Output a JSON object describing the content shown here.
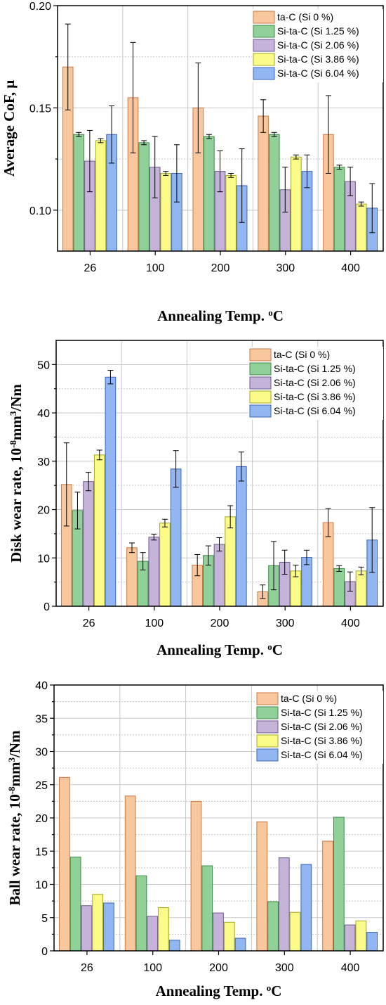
{
  "colors": {
    "series": [
      "#F9C79D",
      "#92D09A",
      "#C5B3DA",
      "#FBFB8A",
      "#92B6F2"
    ],
    "series_edge": [
      "#C97A45",
      "#3C8A47",
      "#6F5A8C",
      "#A6A61F",
      "#3B66B8"
    ]
  },
  "chart_data": [
    {
      "type": "bar",
      "xlabel": "Annealing Temp. ",
      "xlabel_sup": "o",
      "xlabel_tail": "C",
      "ylabel": "Average CoF, μ",
      "categories": [
        "26",
        "100",
        "200",
        "300",
        "400"
      ],
      "ylim": [
        0.08,
        0.2
      ],
      "yticks": [
        0.1,
        0.15,
        0.2
      ],
      "ytick_labels": [
        "0.10",
        "0.15",
        "0.20"
      ],
      "grid": true,
      "legend_position": "top-right",
      "series": [
        {
          "name": "ta-C (Si 0 %)",
          "values": [
            0.17,
            0.155,
            0.15,
            0.146,
            0.137
          ],
          "errors": [
            0.021,
            0.027,
            0.022,
            0.008,
            0.019
          ]
        },
        {
          "name": "Si-ta-C (Si 1.25 %)",
          "values": [
            0.137,
            0.133,
            0.136,
            0.137,
            0.121
          ],
          "errors": [
            0.001,
            0.001,
            0.001,
            0.001,
            0.001
          ]
        },
        {
          "name": "Si-ta-C (Si 2.06 %)",
          "values": [
            0.124,
            0.121,
            0.119,
            0.11,
            0.114
          ],
          "errors": [
            0.015,
            0.015,
            0.01,
            0.011,
            0.007
          ]
        },
        {
          "name": "Si-ta-C (Si 3.86 %)",
          "values": [
            0.134,
            0.118,
            0.117,
            0.126,
            0.103
          ],
          "errors": [
            0.001,
            0.001,
            0.001,
            0.001,
            0.001
          ]
        },
        {
          "name": "Si-ta-C (Si 6.04 %)",
          "values": [
            0.137,
            0.118,
            0.112,
            0.119,
            0.101
          ],
          "errors": [
            0.014,
            0.014,
            0.018,
            0.008,
            0.012
          ]
        }
      ]
    },
    {
      "type": "bar",
      "xlabel": "Annealing Temp. ",
      "xlabel_sup": "o",
      "xlabel_tail": "C",
      "ylabel": "Disk wear rate, 10",
      "ylabel_sup1": "-8",
      "ylabel_mid": "mm",
      "ylabel_sup2": "3",
      "ylabel_tail": "/Nm",
      "categories": [
        "26",
        "100",
        "200",
        "300",
        "400"
      ],
      "ylim": [
        0,
        55
      ],
      "yticks": [
        0,
        10,
        20,
        30,
        40,
        50
      ],
      "ytick_labels": [
        "0",
        "10",
        "20",
        "30",
        "40",
        "50"
      ],
      "grid": true,
      "legend_position": "top-right",
      "series": [
        {
          "name": "ta-C (Si 0 %)",
          "values": [
            25.2,
            12.1,
            8.5,
            3.0,
            17.3
          ],
          "errors": [
            8.6,
            1.0,
            2.2,
            1.4,
            2.9
          ]
        },
        {
          "name": "Si-ta-C (Si 1.25 %)",
          "values": [
            19.8,
            9.3,
            10.5,
            8.4,
            7.8
          ],
          "errors": [
            3.8,
            1.8,
            2.0,
            5.0,
            0.6
          ]
        },
        {
          "name": "Si-ta-C (Si 2.06 %)",
          "values": [
            25.8,
            14.3,
            12.8,
            9.1,
            5.1
          ],
          "errors": [
            1.9,
            0.6,
            1.4,
            2.5,
            2.0
          ]
        },
        {
          "name": "Si-ta-C (Si 3.86 %)",
          "values": [
            31.3,
            17.2,
            18.5,
            7.3,
            7.3
          ],
          "errors": [
            1.0,
            0.8,
            2.3,
            1.2,
            0.8
          ]
        },
        {
          "name": "Si-ta-C (Si 6.04 %)",
          "values": [
            47.4,
            28.4,
            28.9,
            10.1,
            13.7
          ],
          "errors": [
            1.4,
            3.8,
            3.0,
            1.5,
            6.7
          ]
        }
      ]
    },
    {
      "type": "bar",
      "xlabel": "Annealing Temp. ",
      "xlabel_sup": "o",
      "xlabel_tail": "C",
      "ylabel": "Ball wear rate, 10",
      "ylabel_sup1": "-8",
      "ylabel_mid": "mm",
      "ylabel_sup2": "3",
      "ylabel_tail": "/Nm",
      "categories": [
        "26",
        "100",
        "200",
        "300",
        "400"
      ],
      "ylim": [
        0,
        40
      ],
      "yticks": [
        0,
        5,
        10,
        15,
        20,
        25,
        30,
        35,
        40
      ],
      "ytick_labels": [
        "0",
        "5",
        "10",
        "15",
        "20",
        "25",
        "30",
        "35",
        "40"
      ],
      "grid": true,
      "legend_position": "top-right",
      "series": [
        {
          "name": "ta-C (Si 0 %)",
          "values": [
            26.1,
            23.3,
            22.5,
            19.4,
            16.5
          ]
        },
        {
          "name": "Si-ta-C (Si 1.25 %)",
          "values": [
            14.1,
            11.3,
            12.8,
            7.4,
            20.1
          ]
        },
        {
          "name": "Si-ta-C (Si 2.06 %)",
          "values": [
            6.8,
            5.2,
            5.7,
            14.0,
            3.9
          ]
        },
        {
          "name": "Si-ta-C (Si 3.86 %)",
          "values": [
            8.5,
            6.5,
            4.3,
            5.8,
            4.5
          ]
        },
        {
          "name": "Si-ta-C (Si 6.04 %)",
          "values": [
            7.2,
            1.6,
            1.9,
            13.0,
            2.8
          ]
        }
      ]
    }
  ]
}
